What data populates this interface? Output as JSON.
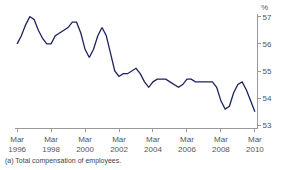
{
  "chart_data": {
    "type": "line",
    "ylabel": "%",
    "annotations": [
      "(a) Total compensation of employees."
    ],
    "categories": [
      "Mar 1996",
      null,
      null,
      null,
      null,
      null,
      null,
      null,
      "Mar 1998",
      null,
      null,
      null,
      null,
      null,
      null,
      null,
      "Mar 2000",
      null,
      null,
      null,
      null,
      null,
      null,
      null,
      "Mar 2002",
      null,
      null,
      null,
      null,
      null,
      null,
      null,
      "Mar 2004",
      null,
      null,
      null,
      null,
      null,
      null,
      null,
      "Mar 2006",
      null,
      null,
      null,
      null,
      null,
      null,
      null,
      "Mar 2008",
      null,
      null,
      null,
      null,
      null,
      null,
      null,
      "Mar 2010"
    ],
    "values": [
      56.0,
      56.3,
      56.7,
      57.0,
      56.9,
      56.5,
      56.2,
      56.0,
      56.0,
      56.3,
      56.4,
      56.5,
      56.6,
      56.8,
      56.8,
      56.4,
      55.8,
      55.5,
      55.8,
      56.3,
      56.6,
      56.3,
      55.6,
      55.0,
      54.8,
      54.9,
      54.9,
      55.0,
      55.1,
      54.9,
      54.6,
      54.4,
      54.6,
      54.7,
      54.7,
      54.7,
      54.6,
      54.5,
      54.4,
      54.5,
      54.7,
      54.7,
      54.6,
      54.6,
      54.6,
      54.6,
      54.6,
      54.4,
      53.9,
      53.6,
      53.7,
      54.2,
      54.5,
      54.6,
      54.3,
      53.9,
      53.5
    ],
    "color": "#1c2260",
    "ylim": [
      52.9,
      57.1
    ],
    "yticks": [
      53,
      54,
      55,
      56,
      57
    ],
    "grid": false
  }
}
